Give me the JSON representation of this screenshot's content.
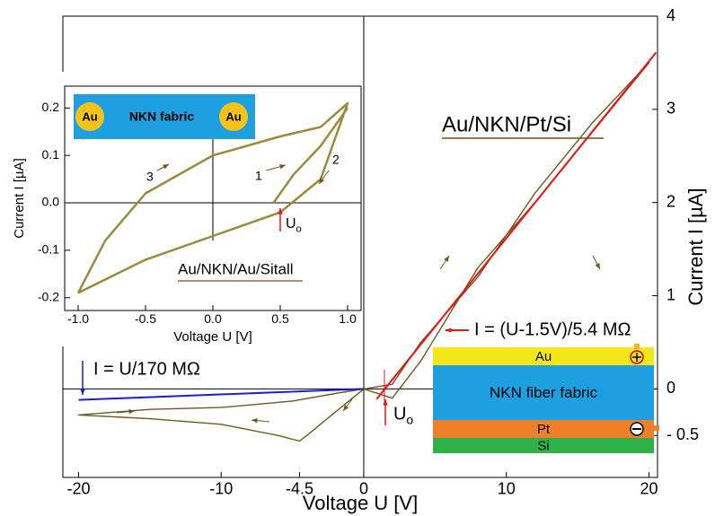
{
  "chart_data": [
    {
      "type": "line",
      "xlabel": "Voltage U  [V]",
      "ylabel": "Current I  [µA]",
      "xlim": [
        -21.1,
        20.6
      ],
      "ylim": [
        -0.95,
        4
      ],
      "xticks": [
        -20,
        -10,
        -4.5,
        0,
        10,
        20
      ],
      "yticks": [
        4,
        3,
        2,
        1,
        0,
        {
          "value": -0.5,
          "label": "- 0.5"
        }
      ],
      "series": [
        {
          "color": "#6b5a1e",
          "x": [
            0,
            -2,
            -4,
            -4.5,
            -6,
            -10,
            -15,
            -20,
            -15,
            -10,
            -5,
            -2,
            0,
            2,
            4,
            8,
            12,
            16,
            20,
            16,
            12,
            8,
            4,
            2,
            0
          ],
          "values": [
            0,
            -0.25,
            -0.5,
            -0.56,
            -0.5,
            -0.38,
            -0.32,
            -0.28,
            -0.22,
            -0.2,
            -0.13,
            -0.05,
            0,
            0.05,
            0.5,
            1.2,
            2.1,
            2.85,
            3.5,
            2.75,
            2.0,
            1.3,
            0.3,
            -0.1,
            0
          ]
        },
        {
          "color": "#ee1111",
          "x": [
            0.9,
            20.5
          ],
          "values": [
            -0.11,
            3.61
          ]
        },
        {
          "color": "#1a1ae6",
          "x": [
            -20,
            0
          ],
          "values": [
            -0.118,
            0
          ]
        }
      ],
      "annotations": [
        {
          "text": "Au/NKN/Pt/Si",
          "color": "#7a4a1a"
        },
        {
          "text": "I = (U-1.5V)/5.4 MΩ",
          "color": "#ee1111"
        },
        {
          "text": "I = U/170 MΩ",
          "color": "#1a1ae6"
        },
        {
          "text": "U",
          "sub": "o",
          "color": "#ee1111"
        }
      ],
      "layers": [
        "Au",
        "NKN fiber fabric",
        "Pt",
        "Si"
      ],
      "layer_colors": [
        "#f5e61a",
        "#1ea0e0",
        "#f07f2a",
        "#2db34a"
      ]
    },
    {
      "type": "line",
      "xlabel": "Voltage U  [V]",
      "ylabel": "Current I  [µA]",
      "xlim": [
        -1.1,
        1.1
      ],
      "ylim": [
        -0.227,
        0.246
      ],
      "xticks": [
        {
          "value": -1,
          "label": "-1.0"
        },
        -0.5,
        {
          "value": 0,
          "label": "0.0"
        },
        0.5,
        {
          "value": 1,
          "label": "1.0"
        }
      ],
      "yticks": [
        0.2,
        0.1,
        {
          "value": 0,
          "label": "0.0"
        },
        -0.1,
        -0.2
      ],
      "series": [
        {
          "color": "#9a8a3a",
          "x": [
            -1,
            -0.5,
            0,
            0.5,
            0.8,
            1,
            0.8,
            0.5,
            0,
            -0.5,
            -0.8,
            -1
          ],
          "values": [
            -0.19,
            -0.12,
            -0.07,
            -0.02,
            0.05,
            0.21,
            0.16,
            0.14,
            0.1,
            0.02,
            -0.08,
            -0.19
          ]
        },
        {
          "color": "#9a8a3a",
          "x": [
            0.45,
            0.6,
            0.8,
            1
          ],
          "values": [
            0,
            0.06,
            0.12,
            0.2
          ]
        }
      ],
      "annotations": [
        {
          "text": "NKN fabric",
          "color": "#ffffff"
        },
        {
          "text": "Au",
          "color": "#ee1111"
        },
        {
          "text": "Au",
          "color": "#ee1111"
        },
        {
          "text": "1",
          "color": "#6b5a1e"
        },
        {
          "text": "2",
          "color": "#6b5a1e"
        },
        {
          "text": "3",
          "color": "#6b5a1e"
        },
        {
          "text": "Au/NKN/Au/Sitall",
          "color": "#7a4a1a"
        },
        {
          "text": "U",
          "sub": "o",
          "color": "#ee1111"
        }
      ]
    }
  ]
}
